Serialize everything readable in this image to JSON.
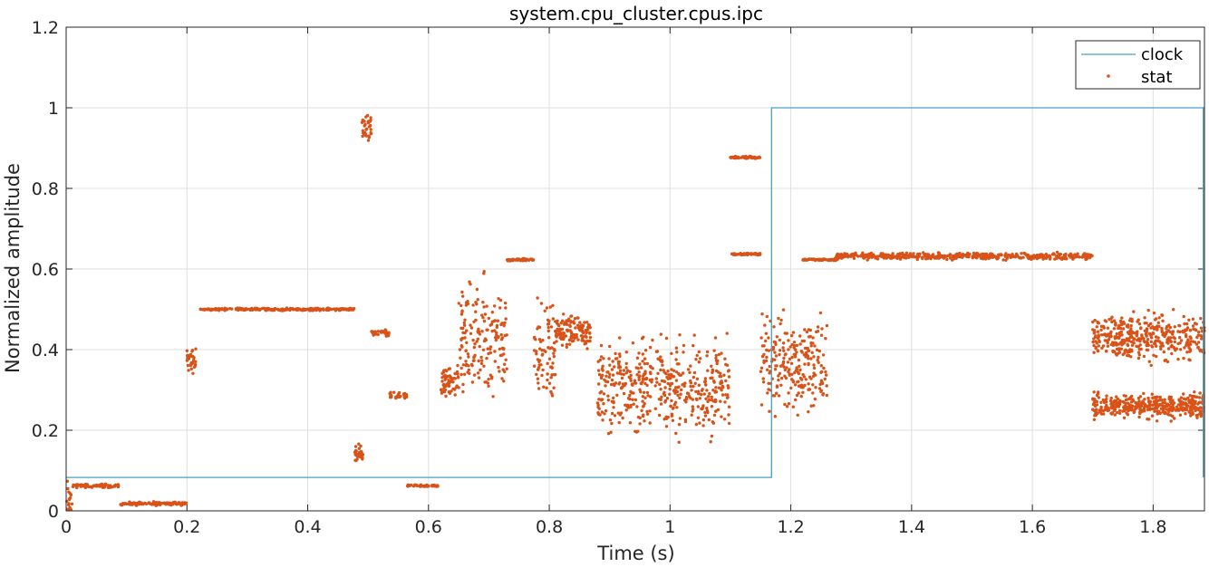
{
  "chart_data": {
    "type": "line",
    "title": "system.cpu_cluster.cpus.ipc",
    "xlabel": "Time (s)",
    "ylabel": "Normalized amplitude",
    "xlim": [
      0,
      1.885
    ],
    "ylim": [
      0,
      1.2
    ],
    "x_ticks": [
      0,
      0.2,
      0.4,
      0.6,
      0.8,
      1,
      1.2,
      1.4,
      1.6,
      1.8
    ],
    "y_ticks": [
      0,
      0.2,
      0.4,
      0.6,
      0.8,
      1,
      1.2
    ],
    "x_tick_labels": [
      "0",
      "0.2",
      "0.4",
      "0.6",
      "0.8",
      "1",
      "1.2",
      "1.4",
      "1.6",
      "1.8"
    ],
    "y_tick_labels": [
      "0",
      "0.2",
      "0.4",
      "0.6",
      "0.8",
      "1",
      "1.2"
    ],
    "grid": true,
    "legend": {
      "placement": "top-right",
      "entries": [
        "clock",
        "stat"
      ]
    },
    "series": [
      {
        "name": "clock",
        "style": "step-line",
        "color": "#4A9FC0",
        "x": [
          0,
          1.168,
          1.168,
          1.883,
          1.883
        ],
        "y": [
          0.083,
          0.083,
          1.0,
          1.0,
          0.083
        ]
      },
      {
        "name": "stat",
        "style": "dots",
        "color": "#D95319",
        "segments": [
          {
            "x": [
              0.0,
              0.01
            ],
            "level": 0.02,
            "spread": 0.08
          },
          {
            "x": [
              0.01,
              0.088
            ],
            "level": 0.062,
            "spread": 0.006
          },
          {
            "x": [
              0.09,
              0.2
            ],
            "level": 0.018,
            "spread": 0.006
          },
          {
            "x": [
              0.2,
              0.215
            ],
            "level": 0.37,
            "spread": 0.05
          },
          {
            "x": [
              0.218,
              0.478
            ],
            "level": 0.5,
            "spread": 0.004
          },
          {
            "x": [
              0.478,
              0.492
            ],
            "level": 0.14,
            "spread": 0.03
          },
          {
            "x": [
              0.49,
              0.505
            ],
            "level": 0.95,
            "spread": 0.05
          },
          {
            "x": [
              0.505,
              0.535
            ],
            "level": 0.44,
            "spread": 0.012
          },
          {
            "x": [
              0.535,
              0.565
            ],
            "level": 0.285,
            "spread": 0.012
          },
          {
            "x": [
              0.565,
              0.617
            ],
            "level": 0.062,
            "spread": 0.004
          },
          {
            "x": [
              0.62,
              0.65
            ],
            "level": 0.32,
            "spread": 0.06
          },
          {
            "x": [
              0.65,
              0.73
            ],
            "level": 0.42,
            "spread": 0.2
          },
          {
            "x": [
              0.73,
              0.775
            ],
            "level": 0.623,
            "spread": 0.004
          },
          {
            "x": [
              0.775,
              0.81
            ],
            "level": 0.4,
            "spread": 0.18
          },
          {
            "x": [
              0.81,
              0.87
            ],
            "level": 0.445,
            "spread": 0.06
          },
          {
            "x": [
              0.88,
              1.1
            ],
            "level": 0.31,
            "spread": 0.16
          },
          {
            "x": [
              1.1,
              1.15
            ],
            "level": 0.877,
            "spread": 0.004
          },
          {
            "x": [
              1.1,
              1.15
            ],
            "level": 0.637,
            "spread": 0.004
          },
          {
            "x": [
              1.15,
              1.26
            ],
            "level": 0.36,
            "spread": 0.16
          },
          {
            "x": [
              1.22,
              1.275
            ],
            "level": 0.623,
            "spread": 0.004
          },
          {
            "x": [
              1.275,
              1.7
            ],
            "level": 0.632,
            "spread": 0.012
          },
          {
            "x": [
              1.7,
              1.885
            ],
            "level": 0.43,
            "spread": 0.08
          },
          {
            "x": [
              1.7,
              1.885
            ],
            "level": 0.26,
            "spread": 0.04
          }
        ]
      }
    ]
  }
}
